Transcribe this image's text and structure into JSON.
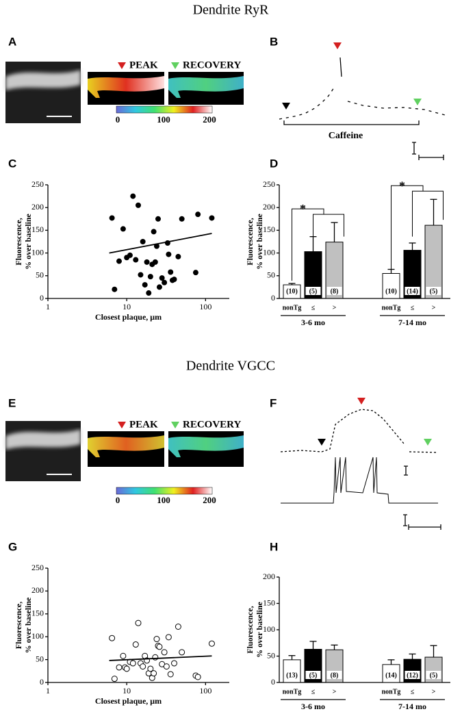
{
  "figure": {
    "titles": [
      "Dendrite RyR",
      "Dendrite VGCC"
    ],
    "panel_labels": [
      "A",
      "B",
      "C",
      "D",
      "E",
      "F",
      "G",
      "H"
    ],
    "image_panels": [
      {
        "peak": "PEAK",
        "recovery": "RECOVERY",
        "colorbar_ticks": [
          0,
          100,
          200
        ]
      },
      {
        "peak": "PEAK",
        "recovery": "RECOVERY",
        "colorbar_ticks": [
          0,
          100,
          200
        ]
      }
    ],
    "trace_label": "Caffeine"
  },
  "chart_data": [
    {
      "type": "scatter",
      "xlabel": "Closest plaque, μm",
      "ylabel": [
        "Fluorescence,",
        "% over baseline"
      ],
      "xscale": "log",
      "xlim": [
        1,
        200
      ],
      "xticks": [
        1,
        10,
        100
      ],
      "ylim": [
        0,
        250
      ],
      "yticks": [
        0,
        50,
        100,
        150,
        200,
        250
      ],
      "marker": "filled",
      "series": [
        {
          "x": [
            6.5,
            7,
            8,
            9,
            10,
            11,
            12,
            13,
            14,
            15,
            16,
            17,
            18,
            19,
            20,
            21,
            22,
            23,
            24,
            25,
            26,
            28,
            30,
            33,
            34,
            36,
            38,
            40,
            45,
            50,
            75,
            80,
            120
          ],
          "values": [
            177,
            20,
            82,
            153,
            90,
            95,
            225,
            85,
            205,
            52,
            125,
            30,
            80,
            12,
            48,
            75,
            147,
            80,
            115,
            175,
            25,
            45,
            35,
            122,
            97,
            58,
            40,
            42,
            92,
            175,
            57,
            185,
            177
          ]
        }
      ],
      "fit_line": {
        "x": [
          6,
          120
        ],
        "values": [
          100,
          143
        ]
      }
    },
    {
      "type": "bar",
      "ylabel": [
        "Fluorescence,",
        "% over baseline"
      ],
      "ylim": [
        0,
        250
      ],
      "yticks": [
        0,
        50,
        100,
        150,
        200,
        250
      ],
      "groups": [
        "3-6 mo",
        "7-14 mo"
      ],
      "categories": [
        "nonTg",
        "≤",
        ">",
        "nonTg",
        "≤",
        ">"
      ],
      "values": [
        30,
        103,
        124,
        55,
        106,
        161
      ],
      "errors": [
        3,
        33,
        43,
        9,
        16,
        57
      ],
      "colors": [
        "#ffffff",
        "#000000",
        "#c0c0c0",
        "#ffffff",
        "#000000",
        "#c0c0c0"
      ],
      "n_labels": [
        "(10)",
        "(5)",
        "(8)",
        "(10)",
        "(14)",
        "(5)"
      ],
      "annotations": [
        "*",
        "*"
      ]
    },
    {
      "type": "scatter",
      "xlabel": "Closest plaque, μm",
      "ylabel": [
        "Fluorescence,",
        "% over baseline"
      ],
      "xscale": "log",
      "xlim": [
        1,
        200
      ],
      "xticks": [
        1,
        10,
        100
      ],
      "ylim": [
        0,
        250
      ],
      "yticks": [
        0,
        50,
        100,
        150,
        200,
        250
      ],
      "marker": "open",
      "series": [
        {
          "x": [
            6.5,
            7,
            8,
            9,
            9.5,
            10,
            11,
            12,
            13,
            14,
            15,
            16,
            17,
            18,
            19,
            20,
            21,
            22,
            23,
            24,
            25,
            26,
            28,
            30,
            32,
            34,
            36,
            40,
            45,
            50,
            75,
            80,
            120
          ],
          "values": [
            97,
            8,
            33,
            58,
            33,
            30,
            45,
            42,
            83,
            130,
            42,
            35,
            58,
            48,
            20,
            30,
            10,
            20,
            55,
            95,
            80,
            78,
            40,
            66,
            35,
            99,
            18,
            42,
            122,
            66,
            15,
            12,
            85
          ]
        }
      ],
      "fit_line": {
        "x": [
          6,
          120
        ],
        "values": [
          48,
          58
        ]
      }
    },
    {
      "type": "bar",
      "ylabel": [
        "Fluorescence,",
        "% over baseline"
      ],
      "ylim": [
        0,
        200
      ],
      "yticks": [
        0,
        50,
        100,
        150,
        200
      ],
      "groups": [
        "3-6 mo",
        "7-14 mo"
      ],
      "categories": [
        "nonTg",
        "≤",
        ">",
        "nonTg",
        "≤",
        ">"
      ],
      "values": [
        43,
        63,
        62,
        34,
        44,
        48
      ],
      "errors": [
        8,
        15,
        9,
        9,
        10,
        22
      ],
      "colors": [
        "#ffffff",
        "#000000",
        "#c0c0c0",
        "#ffffff",
        "#000000",
        "#c0c0c0"
      ],
      "n_labels": [
        "(13)",
        "(5)",
        "(8)",
        "(14)",
        "(12)",
        "(5)"
      ]
    }
  ]
}
